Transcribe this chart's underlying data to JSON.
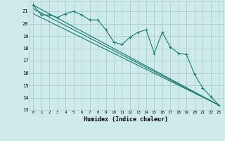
{
  "xlabel": "Humidex (Indice chaleur)",
  "ylabel": "",
  "background_color": "#ceeaea",
  "grid_color": "#aacfcf",
  "line_color": "#1a7a6e",
  "xlim": [
    -0.5,
    23.5
  ],
  "ylim": [
    13,
    21.8
  ],
  "yticks": [
    13,
    14,
    15,
    16,
    17,
    18,
    19,
    20,
    21
  ],
  "xticks": [
    0,
    1,
    2,
    3,
    4,
    5,
    6,
    7,
    8,
    9,
    10,
    11,
    12,
    13,
    14,
    15,
    16,
    17,
    18,
    19,
    20,
    21,
    22,
    23
  ],
  "series": [
    {
      "x": [
        0,
        1,
        2,
        3,
        4,
        5,
        6,
        7,
        8,
        9,
        10,
        11,
        12,
        13,
        14,
        15,
        16,
        17,
        18,
        19,
        20,
        21,
        22,
        23
      ],
      "y": [
        21.5,
        20.7,
        20.7,
        20.5,
        20.8,
        21.0,
        20.7,
        20.3,
        20.3,
        19.5,
        18.5,
        18.3,
        18.9,
        19.3,
        19.5,
        17.6,
        19.3,
        18.1,
        17.6,
        17.5,
        15.9,
        14.8,
        14.1,
        13.4
      ],
      "has_markers": true
    },
    {
      "x": [
        0,
        23
      ],
      "y": [
        21.5,
        13.4
      ],
      "has_markers": false
    },
    {
      "x": [
        0,
        23
      ],
      "y": [
        21.2,
        13.4
      ],
      "has_markers": false
    },
    {
      "x": [
        0,
        23
      ],
      "y": [
        20.8,
        13.4
      ],
      "has_markers": false
    }
  ]
}
